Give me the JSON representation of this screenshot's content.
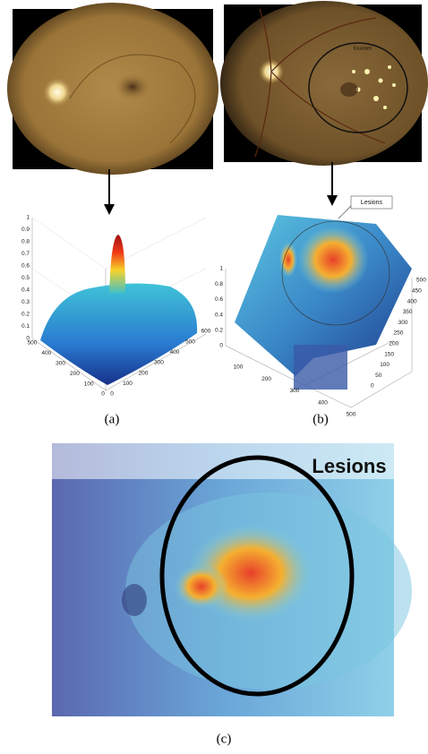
{
  "panels": [
    {
      "label": "(a)",
      "plot": {
        "z_ticks": [
          0,
          0.1,
          0.2,
          0.3,
          0.4,
          0.5,
          0.6,
          0.7,
          0.8,
          0.9,
          1
        ],
        "y_ticks": [
          500,
          400,
          300,
          200,
          100,
          0
        ],
        "x_ticks": [
          0,
          100,
          200,
          300,
          400,
          500,
          600
        ]
      }
    },
    {
      "label": "(b)",
      "fundus_annotation": "Exudates",
      "plot": {
        "annotation": "Lesions",
        "z_ticks": [
          0,
          0.2,
          0.4,
          0.6,
          0.8,
          1
        ],
        "y_ticks": [
          500,
          450,
          400,
          350,
          300,
          250,
          200,
          150,
          100,
          50,
          0
        ],
        "x_ticks": [
          100,
          200,
          300,
          400,
          500
        ]
      }
    },
    {
      "label": "(c)",
      "annotation": "Lesions"
    }
  ]
}
